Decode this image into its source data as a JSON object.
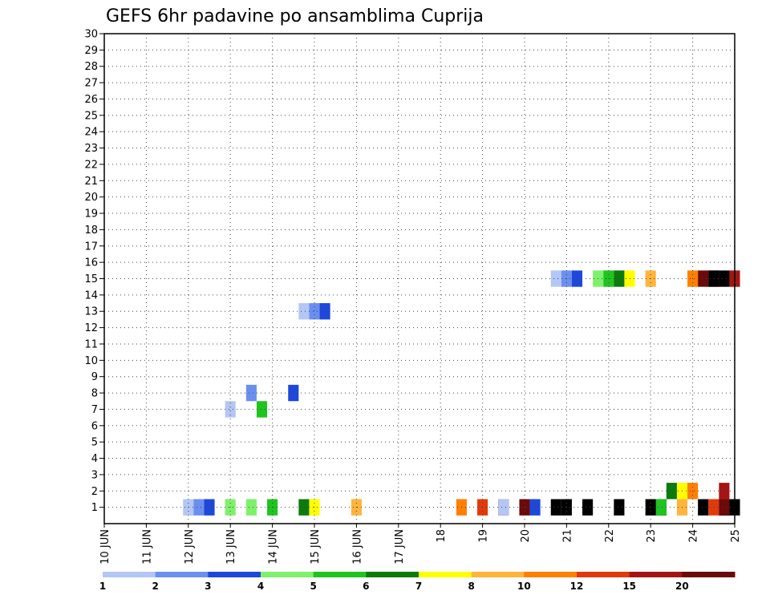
{
  "chart_data": {
    "type": "heatmap",
    "title": "GEFS 6hr padavine po ansamblima Cuprija",
    "xlabel": "",
    "ylabel": "",
    "x_ticks": [
      "10 JUN",
      "11 JUN",
      "12 JUN",
      "13 JUN",
      "14 JUN",
      "15 JUN",
      "16 JUN",
      "17 JUN",
      "18",
      "19",
      "20",
      "21",
      "22",
      "23",
      "24",
      "25"
    ],
    "x_range_days": [
      0,
      15
    ],
    "y_ticks": [
      1,
      2,
      3,
      4,
      5,
      6,
      7,
      8,
      9,
      10,
      11,
      12,
      13,
      14,
      15,
      16,
      17,
      18,
      19,
      20,
      21,
      22,
      23,
      24,
      25,
      26,
      27,
      28,
      29,
      30
    ],
    "y_range": [
      0,
      30
    ],
    "grid": true,
    "legend": {
      "position": "bottom",
      "labels": [
        "1",
        "2",
        "3",
        "4",
        "5",
        "6",
        "7",
        "8",
        "10",
        "12",
        "15",
        "20"
      ],
      "colors": [
        "#b3c6f5",
        "#6a8fef",
        "#1d48da",
        "#7ff06b",
        "#1fc41f",
        "#0c7a0c",
        "#ffff00",
        "#ffb43c",
        "#ff7f00",
        "#e03a0c",
        "#a51414",
        "#6b0a0a"
      ]
    },
    "cells": [
      [
        2.0,
        1,
        0
      ],
      [
        2.25,
        1,
        1
      ],
      [
        2.5,
        1,
        2
      ],
      [
        3.0,
        1,
        3
      ],
      [
        4.0,
        1,
        4
      ],
      [
        4.75,
        1,
        5
      ],
      [
        5.0,
        1,
        6
      ],
      [
        6.0,
        1,
        7
      ],
      [
        8.5,
        1,
        8
      ],
      [
        9.0,
        1,
        9
      ],
      [
        9.5,
        1,
        10
      ],
      [
        10.0,
        1,
        11
      ],
      [
        10.75,
        1,
        12
      ],
      [
        11.0,
        1,
        13
      ],
      [
        11.5,
        1,
        14
      ],
      [
        12.25,
        1,
        15
      ],
      [
        13.0,
        1,
        16
      ],
      [
        13.25,
        1,
        17
      ],
      [
        14.25,
        1,
        18
      ],
      [
        14.75,
        1,
        19
      ],
      [
        15.0,
        1,
        20
      ],
      [
        3.0,
        7,
        0
      ],
      [
        3.5,
        8,
        1
      ],
      [
        4.5,
        8,
        2
      ],
      [
        4.75,
        13,
        0
      ],
      [
        5.0,
        13,
        1
      ],
      [
        5.25,
        13,
        2
      ],
      [
        3.5,
        1,
        3
      ],
      [
        3.75,
        7,
        4
      ],
      [
        10.75,
        15,
        0
      ],
      [
        11.0,
        15,
        1
      ],
      [
        11.25,
        15,
        2
      ],
      [
        11.75,
        15,
        3
      ],
      [
        12.0,
        15,
        4
      ],
      [
        12.25,
        15,
        5
      ],
      [
        12.5,
        15,
        6
      ],
      [
        13.0,
        15,
        7
      ],
      [
        14.0,
        15,
        8
      ],
      [
        14.5,
        15,
        9
      ],
      [
        15.0,
        15,
        10
      ],
      [
        14.25,
        15,
        11
      ],
      [
        14.5,
        15,
        12
      ],
      [
        14.75,
        15,
        13
      ],
      [
        9.5,
        1,
        0
      ],
      [
        10.25,
        1,
        2
      ],
      [
        13.25,
        1,
        4
      ],
      [
        13.5,
        2,
        5
      ],
      [
        13.75,
        2,
        6
      ],
      [
        13.75,
        1,
        7
      ],
      [
        14.0,
        2,
        8
      ],
      [
        14.5,
        1,
        9
      ],
      [
        14.75,
        2,
        10
      ],
      [
        14.75,
        1,
        11
      ]
    ]
  }
}
